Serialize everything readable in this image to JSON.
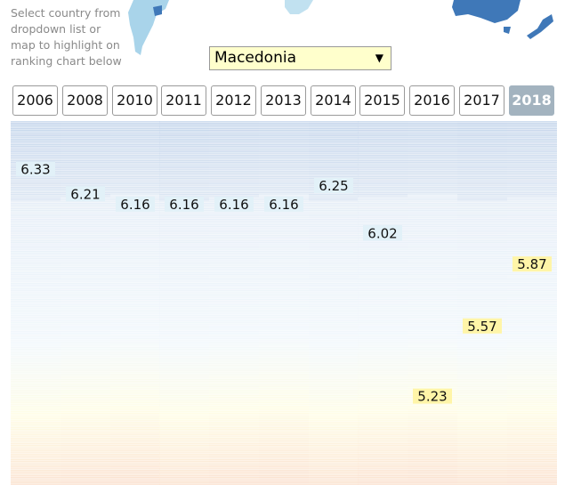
{
  "instructions": "Select country from dropdown list or map to highlight on ranking chart below",
  "country_select": {
    "selected": "Macedonia"
  },
  "years": [
    "2006",
    "2008",
    "2010",
    "2011",
    "2012",
    "2013",
    "2014",
    "2015",
    "2016",
    "2017",
    "2018"
  ],
  "active_year": "2018",
  "chart_data": {
    "type": "table",
    "description_free": true,
    "highlighted_country": "Macedonia",
    "x": [
      "2006",
      "2008",
      "2010",
      "2011",
      "2012",
      "2013",
      "2014",
      "2015",
      "2016",
      "2017",
      "2018"
    ],
    "values": [
      6.33,
      6.21,
      6.16,
      6.16,
      6.16,
      6.16,
      6.25,
      6.02,
      5.23,
      5.57,
      5.87
    ],
    "value_labels": [
      "6.33",
      "6.21",
      "6.16",
      "6.16",
      "6.16",
      "6.16",
      "6.25",
      "6.02",
      "5.23",
      "5.57",
      "5.87"
    ],
    "colors": {
      "high": "#c7d7ec",
      "mid": "#f2f8fc",
      "low_mid": "#fffde6",
      "low": "#fbe3d2",
      "highlight_high": "#e2f1f8",
      "highlight_low": "#fff5a8"
    }
  }
}
